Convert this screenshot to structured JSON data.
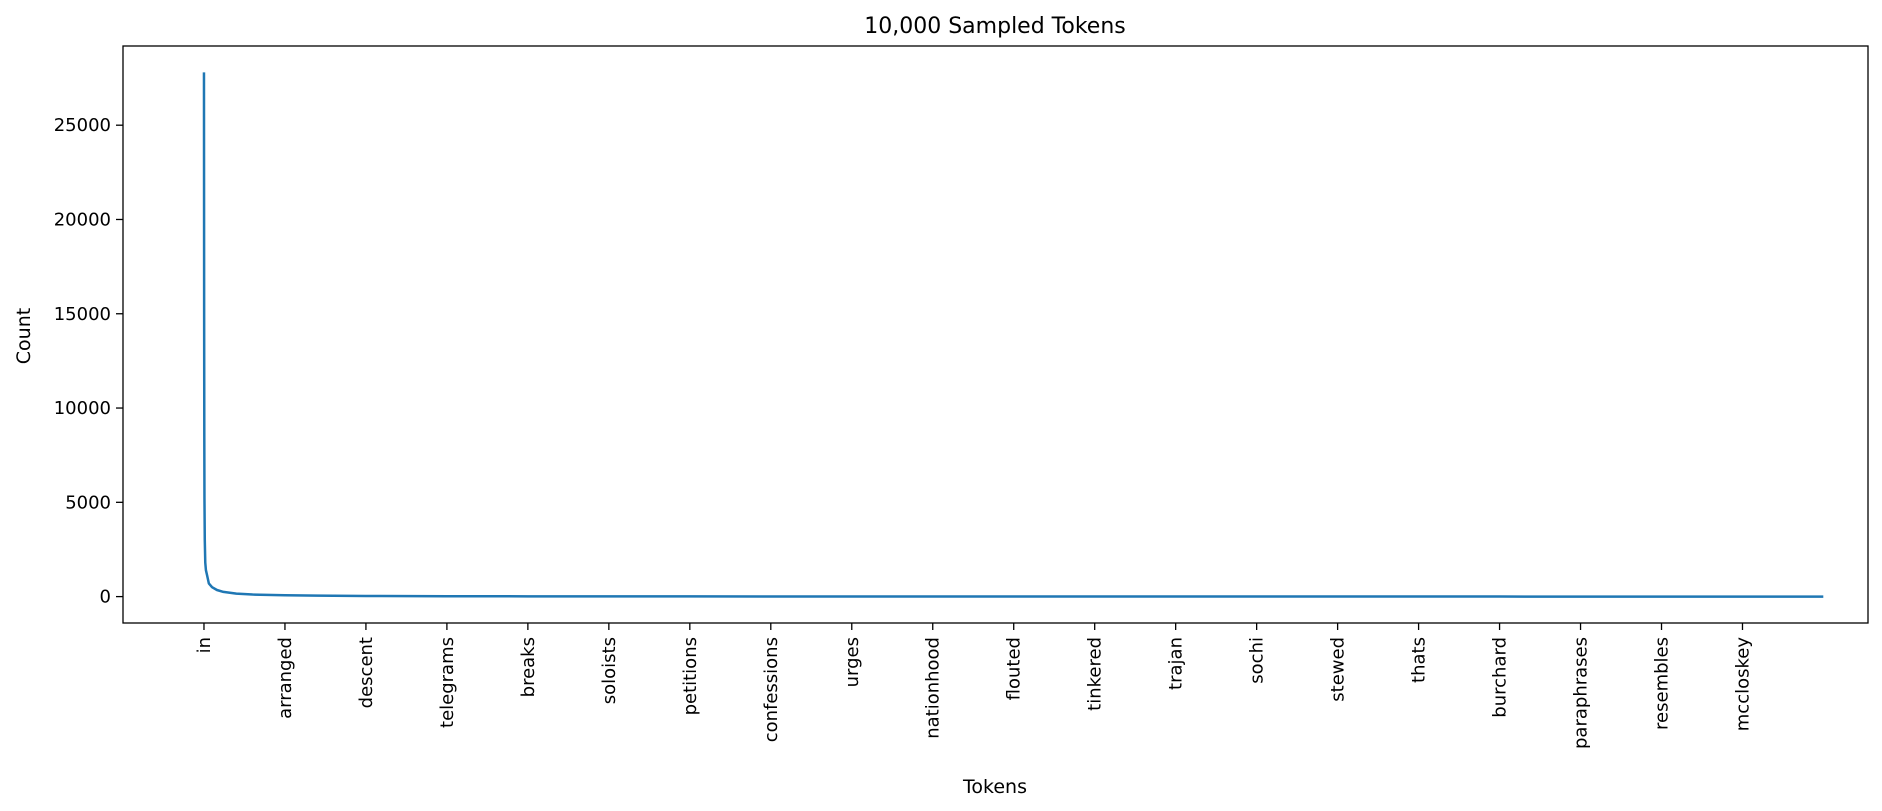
{
  "chart_data": {
    "type": "line",
    "title": "10,000 Sampled Tokens",
    "xlabel": "Tokens",
    "ylabel": "Count",
    "ylim": [
      -1400,
      29200
    ],
    "n_points": 10000,
    "x_tick_every": 500,
    "x_ticks": [
      "in",
      "arranged",
      "descent",
      "telegrams",
      "breaks",
      "soloists",
      "petitions",
      "confessions",
      "urges",
      "nationhood",
      "flouted",
      "tinkered",
      "trajan",
      "sochi",
      "stewed",
      "thats",
      "burchard",
      "paraphrases",
      "resembles",
      "mccloskey"
    ],
    "y_ticks": [
      0,
      5000,
      10000,
      15000,
      20000,
      25000
    ],
    "grid": false,
    "line_color": "#1f77b4",
    "series": [
      {
        "x": [
          0,
          1,
          2,
          3,
          5,
          8,
          12,
          20,
          30,
          50,
          80,
          120,
          200,
          300,
          500,
          700,
          1000,
          1500,
          2000,
          3000,
          4000,
          5000,
          6000,
          7000,
          8000,
          9000,
          9999
        ],
        "values": [
          27800,
          15000,
          8500,
          5200,
          3000,
          1800,
          1400,
          1100,
          700,
          500,
          350,
          250,
          160,
          110,
          70,
          50,
          35,
          22,
          15,
          9,
          6,
          4,
          3,
          2,
          2,
          1,
          1
        ]
      }
    ]
  }
}
